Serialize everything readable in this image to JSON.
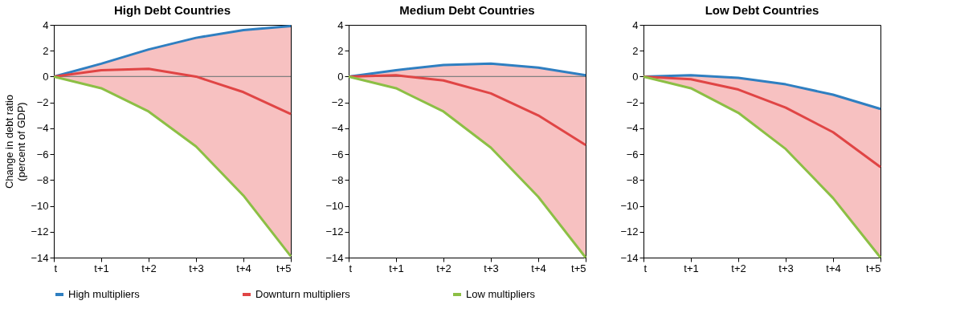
{
  "chart_data": [
    {
      "type": "line",
      "title": "High Debt Countries",
      "ylabel": "Change in debt ratio\n(percent of GDP)",
      "categories": [
        "t",
        "t+1",
        "t+2",
        "t+3",
        "t+4",
        "t+5"
      ],
      "ylim": [
        -14,
        4
      ],
      "yticks": [
        -14,
        -12,
        -10,
        -8,
        -6,
        -4,
        -2,
        0,
        2,
        4
      ],
      "legend": "bottom",
      "ref_lines": [
        {
          "axis": "y",
          "value": 0,
          "color": "#808080"
        }
      ],
      "series": [
        {
          "name": "High multipliers",
          "color": "#2f7fc1",
          "values": [
            0,
            1.0,
            2.1,
            3.0,
            3.6,
            3.9
          ]
        },
        {
          "name": "Downturn multipliers",
          "color": "#e04545",
          "values": [
            0,
            0.5,
            0.6,
            0.0,
            -1.2,
            -2.9
          ],
          "lower": [
            0,
            -0.9,
            -2.7,
            -5.4,
            -9.2,
            -13.9
          ],
          "upper": [
            0,
            1.0,
            2.1,
            3.0,
            3.6,
            3.9
          ]
        },
        {
          "name": "Low multipliers",
          "color": "#8cbf45",
          "values": [
            0,
            -0.9,
            -2.7,
            -5.4,
            -9.2,
            -13.9
          ]
        }
      ]
    },
    {
      "type": "line",
      "title": "Medium Debt Countries",
      "categories": [
        "t",
        "t+1",
        "t+2",
        "t+3",
        "t+4",
        "t+5"
      ],
      "ylim": [
        -14,
        4
      ],
      "yticks": [
        -14,
        -12,
        -10,
        -8,
        -6,
        -4,
        -2,
        0,
        2,
        4
      ],
      "ref_lines": [
        {
          "axis": "y",
          "value": 0,
          "color": "#808080"
        }
      ],
      "series": [
        {
          "color": "#2f7fc1",
          "values": [
            0,
            0.5,
            0.9,
            1.0,
            0.7,
            0.1
          ]
        },
        {
          "color": "#e04545",
          "values": [
            0,
            0.1,
            -0.3,
            -1.3,
            -3.0,
            -5.3
          ],
          "lower": [
            0,
            -0.9,
            -2.7,
            -5.5,
            -9.3,
            -14.0
          ],
          "upper": [
            0,
            0.5,
            0.9,
            1.0,
            0.7,
            0.1
          ]
        },
        {
          "color": "#8cbf45",
          "values": [
            0,
            -0.9,
            -2.7,
            -5.5,
            -9.3,
            -14.0
          ]
        }
      ]
    },
    {
      "type": "line",
      "title": "Low Debt Countries",
      "categories": [
        "t",
        "t+1",
        "t+2",
        "t+3",
        "t+4",
        "t+5"
      ],
      "ylim": [
        -14,
        4
      ],
      "yticks": [
        -14,
        -12,
        -10,
        -8,
        -6,
        -4,
        -2,
        0,
        2,
        4
      ],
      "series": [
        {
          "color": "#2f7fc1",
          "values": [
            0,
            0.1,
            -0.1,
            -0.6,
            -1.4,
            -2.5
          ]
        },
        {
          "color": "#e04545",
          "values": [
            0,
            -0.2,
            -1.0,
            -2.4,
            -4.3,
            -7.0
          ],
          "lower": [
            0,
            -0.9,
            -2.8,
            -5.6,
            -9.4,
            -14.0
          ],
          "upper": [
            0,
            0.1,
            -0.1,
            -0.6,
            -1.4,
            -2.5
          ]
        },
        {
          "color": "#8cbf45",
          "values": [
            0,
            -0.9,
            -2.8,
            -5.6,
            -9.4,
            -14.0
          ]
        }
      ]
    }
  ]
}
